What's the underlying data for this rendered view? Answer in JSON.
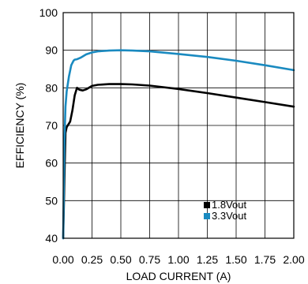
{
  "chart_data": {
    "type": "line",
    "xlabel": "LOAD CURRENT (A)",
    "ylabel": "EFFICIENCY (%)",
    "xlim": [
      0,
      2.0
    ],
    "ylim": [
      40,
      100
    ],
    "grid": true,
    "legend_position": "bottom-right",
    "x_ticks": [
      "0.00",
      "0.25",
      "0.50",
      "0.75",
      "1.00",
      "1.25",
      "1.50",
      "1.75",
      "2.00"
    ],
    "x_tick_values": [
      0,
      0.25,
      0.5,
      0.75,
      1.0,
      1.25,
      1.5,
      1.75,
      2.0
    ],
    "y_ticks": [
      "40",
      "50",
      "60",
      "70",
      "80",
      "90",
      "100"
    ],
    "y_tick_values": [
      40,
      50,
      60,
      70,
      80,
      90,
      100
    ],
    "series": [
      {
        "name": "1.8Vout",
        "color": "#000000",
        "x": [
          0.0,
          0.01,
          0.02,
          0.03,
          0.04,
          0.06,
          0.08,
          0.1,
          0.12,
          0.14,
          0.17,
          0.2,
          0.25,
          0.3,
          0.4,
          0.5,
          0.6,
          0.75,
          1.0,
          1.25,
          1.5,
          1.75,
          2.0
        ],
        "y": [
          40,
          55,
          68,
          69.5,
          70,
          71,
          74,
          78,
          80,
          79.5,
          79.3,
          79.6,
          80.5,
          80.8,
          81.0,
          81.0,
          80.9,
          80.6,
          79.7,
          78.6,
          77.4,
          76.2,
          75.0
        ]
      },
      {
        "name": "3.3Vout",
        "color": "#1a8ac0",
        "x": [
          0.0,
          0.01,
          0.02,
          0.03,
          0.05,
          0.07,
          0.09,
          0.1,
          0.12,
          0.15,
          0.2,
          0.25,
          0.3,
          0.4,
          0.5,
          0.6,
          0.75,
          1.0,
          1.25,
          1.5,
          1.75,
          2.0
        ],
        "y": [
          40,
          65,
          75,
          79,
          83,
          86,
          87.2,
          87.5,
          87.6,
          88.0,
          88.9,
          89.4,
          89.7,
          89.9,
          90.0,
          89.9,
          89.7,
          89.0,
          88.2,
          87.2,
          86.0,
          84.7
        ]
      }
    ]
  }
}
